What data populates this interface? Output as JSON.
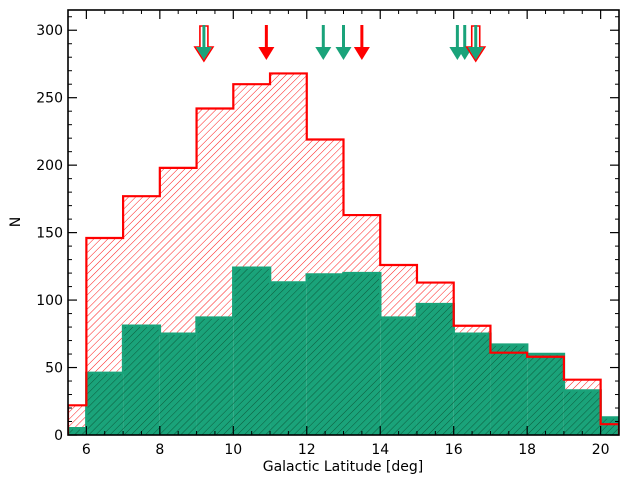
{
  "chart_data": {
    "type": "bar",
    "xlabel": "Galactic Latitude [deg]",
    "ylabel": "N",
    "xlim": [
      5.5,
      20.5
    ],
    "ylim": [
      0,
      315
    ],
    "grid": false,
    "x_ticks": [
      6,
      8,
      10,
      12,
      14,
      16,
      18,
      20
    ],
    "x_tick_labels": [
      "6",
      "8",
      "10",
      "12",
      "14",
      "16",
      "18",
      "20"
    ],
    "y_ticks": [
      0,
      50,
      100,
      150,
      200,
      250,
      300
    ],
    "y_tick_labels": [
      "0",
      "50",
      "100",
      "150",
      "200",
      "250",
      "300"
    ],
    "bin_edges": [
      5.5,
      6,
      7,
      8,
      9,
      10,
      11,
      12,
      13,
      14,
      15,
      16,
      17,
      18,
      19,
      20,
      20.5
    ],
    "series": [
      {
        "color": "#ff0000",
        "fill": "hatched",
        "values": [
          22,
          146,
          177,
          198,
          242,
          260,
          268,
          219,
          163,
          126,
          113,
          81,
          61,
          58,
          41,
          8
        ]
      },
      {
        "color": "#1aa37a",
        "fill": "solid-hatched",
        "values": [
          5,
          46,
          81,
          75,
          87,
          124,
          113,
          119,
          120,
          87,
          97,
          75,
          67,
          60,
          33,
          13
        ]
      }
    ],
    "markers": [
      {
        "x": 9.2,
        "color": "#ff0000",
        "style": "hollow"
      },
      {
        "x": 9.2,
        "color": "#1aa37a",
        "style": "solid"
      },
      {
        "x": 10.9,
        "color": "#ff0000",
        "style": "solid"
      },
      {
        "x": 12.45,
        "color": "#1aa37a",
        "style": "solid"
      },
      {
        "x": 13.0,
        "color": "#1aa37a",
        "style": "solid"
      },
      {
        "x": 13.5,
        "color": "#ff0000",
        "style": "solid"
      },
      {
        "x": 16.1,
        "color": "#1aa37a",
        "style": "solid"
      },
      {
        "x": 16.3,
        "color": "#1aa37a",
        "style": "solid"
      },
      {
        "x": 16.6,
        "color": "#ff0000",
        "style": "hollow"
      },
      {
        "x": 16.6,
        "color": "#1aa37a",
        "style": "solid"
      }
    ]
  }
}
